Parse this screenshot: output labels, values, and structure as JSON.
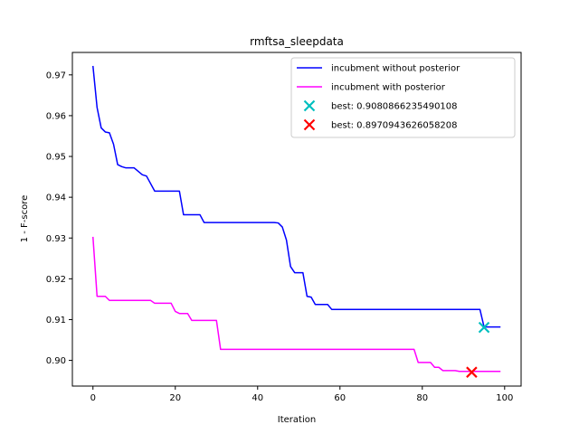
{
  "chart_data": {
    "type": "line",
    "title": "rmftsa_sleepdata",
    "xlabel": "Iteration",
    "ylabel": "1 - F-score",
    "xlim": [
      -5,
      104
    ],
    "ylim": [
      0.8937,
      0.9755
    ],
    "x_ticks": [
      0,
      20,
      40,
      60,
      80,
      100
    ],
    "y_ticks": [
      0.9,
      0.91,
      0.92,
      0.93,
      0.94,
      0.95,
      0.96,
      0.97
    ],
    "x_tick_labels": [
      "0",
      "20",
      "40",
      "60",
      "80",
      "100"
    ],
    "y_tick_labels": [
      "0.90",
      "0.91",
      "0.92",
      "0.93",
      "0.94",
      "0.95",
      "0.96",
      "0.97"
    ],
    "grid": false,
    "legend_position": "top-right",
    "series": [
      {
        "name": "incubment without posterior",
        "color": "#0000ff",
        "points": [
          [
            0,
            0.9722
          ],
          [
            1,
            0.962
          ],
          [
            2,
            0.957
          ],
          [
            3,
            0.956
          ],
          [
            4,
            0.9558
          ],
          [
            5,
            0.953
          ],
          [
            6,
            0.948
          ],
          [
            7,
            0.9475
          ],
          [
            8,
            0.9472
          ],
          [
            10,
            0.9472
          ],
          [
            12,
            0.9455
          ],
          [
            13,
            0.9452
          ],
          [
            15,
            0.9415
          ],
          [
            21,
            0.9415
          ],
          [
            22,
            0.9357
          ],
          [
            26,
            0.9357
          ],
          [
            27,
            0.9338
          ],
          [
            44,
            0.9338
          ],
          [
            45,
            0.9337
          ],
          [
            46,
            0.9327
          ],
          [
            47,
            0.9295
          ],
          [
            48,
            0.923
          ],
          [
            49,
            0.9215
          ],
          [
            51,
            0.9215
          ],
          [
            52,
            0.9157
          ],
          [
            53,
            0.9155
          ],
          [
            54,
            0.9137
          ],
          [
            57,
            0.9137
          ],
          [
            58,
            0.9125
          ],
          [
            94,
            0.9125
          ],
          [
            95,
            0.9082
          ],
          [
            99,
            0.9082
          ]
        ]
      },
      {
        "name": "incubment with posterior",
        "color": "#ff00ff",
        "points": [
          [
            0,
            0.9303
          ],
          [
            1,
            0.9157
          ],
          [
            3,
            0.9157
          ],
          [
            4,
            0.9147
          ],
          [
            14,
            0.9147
          ],
          [
            15,
            0.914
          ],
          [
            19,
            0.914
          ],
          [
            20,
            0.912
          ],
          [
            21,
            0.9115
          ],
          [
            23,
            0.9115
          ],
          [
            24,
            0.9098
          ],
          [
            30,
            0.9098
          ],
          [
            31,
            0.9027
          ],
          [
            78,
            0.9027
          ],
          [
            79,
            0.8995
          ],
          [
            82,
            0.8995
          ],
          [
            83,
            0.8983
          ],
          [
            84,
            0.8983
          ],
          [
            85,
            0.8975
          ],
          [
            88,
            0.8975
          ],
          [
            89,
            0.8973
          ],
          [
            99,
            0.8973
          ]
        ]
      }
    ],
    "markers": [
      {
        "label": "best: 0.9080866235490108",
        "x": 95,
        "y": 0.9080866235490108,
        "color": "#00bfbf",
        "symbol": "x"
      },
      {
        "label": "best: 0.8970943626058208",
        "x": 92,
        "y": 0.8970943626058208,
        "color": "#ff0000",
        "symbol": "x"
      }
    ]
  }
}
